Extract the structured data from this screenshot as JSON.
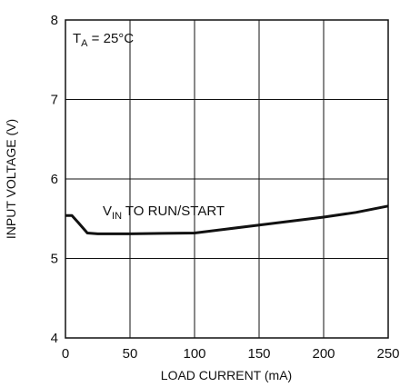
{
  "chart_data": {
    "type": "line",
    "xlabel": "LOAD CURRENT (mA)",
    "ylabel": "INPUT VOLTAGE (V)",
    "xlim": [
      0,
      250
    ],
    "ylim": [
      4,
      8
    ],
    "x_ticks": [
      "0",
      "50",
      "100",
      "150",
      "200",
      "250"
    ],
    "y_ticks": [
      "4",
      "5",
      "6",
      "7",
      "8"
    ],
    "grid": true,
    "annotations": {
      "temperature": {
        "base": "T",
        "sub": "A",
        "rest": " = 25°C"
      },
      "curve_label": {
        "base": "V",
        "sub": "IN",
        "rest": " TO RUN/START"
      }
    },
    "series": [
      {
        "name": "VIN TO RUN/START",
        "x": [
          0,
          5,
          10,
          17,
          25,
          50,
          75,
          100,
          125,
          150,
          175,
          200,
          225,
          250
        ],
        "y": [
          5.54,
          5.54,
          5.45,
          5.32,
          5.31,
          5.31,
          5.315,
          5.32,
          5.37,
          5.42,
          5.47,
          5.52,
          5.58,
          5.66
        ]
      }
    ]
  }
}
